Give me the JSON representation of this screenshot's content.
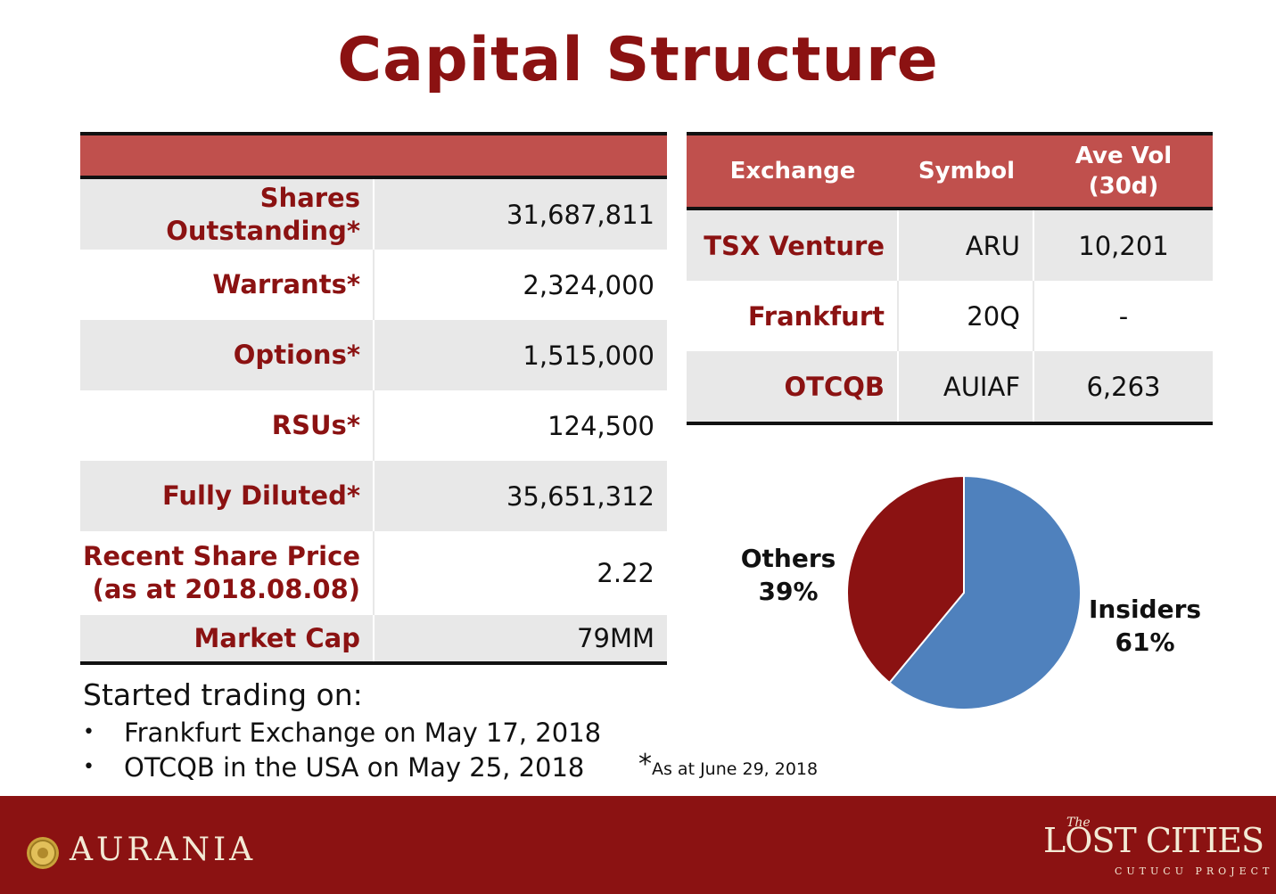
{
  "title": "Capital Structure",
  "capital_table": {
    "rows": [
      {
        "label": "Shares Outstanding*",
        "value": "31,687,811"
      },
      {
        "label": "Warrants*",
        "value": "2,324,000"
      },
      {
        "label": "Options*",
        "value": "1,515,000"
      },
      {
        "label": "RSUs*",
        "value": "124,500"
      },
      {
        "label": "Fully Diluted*",
        "value": "35,651,312"
      },
      {
        "label_line1": "Recent Share Price",
        "label_line2": "(as at 2018.08.08)",
        "value": "2.22"
      },
      {
        "label": "Market Cap",
        "value": "79MM"
      }
    ]
  },
  "exchange_table": {
    "headers": {
      "exchange": "Exchange",
      "symbol": "Symbol",
      "vol_line1": "Ave Vol",
      "vol_line2": "(30d)"
    },
    "rows": [
      {
        "exchange": "TSX Venture",
        "symbol": "ARU",
        "volume": "10,201"
      },
      {
        "exchange": "Frankfurt",
        "symbol": "20Q",
        "volume": "-"
      },
      {
        "exchange": "OTCQB",
        "symbol": "AUIAF",
        "volume": "6,263"
      }
    ]
  },
  "chart_data": {
    "type": "pie",
    "title": "",
    "series": [
      {
        "name": "Insiders",
        "value": 61,
        "label": "61%",
        "color": "#4F81BD"
      },
      {
        "name": "Others",
        "value": 39,
        "label": "39%",
        "color": "#8B1212"
      }
    ]
  },
  "trading": {
    "heading": "Started trading on:",
    "bullet_symbol": "•",
    "items": [
      "Frankfurt Exchange on May 17, 2018",
      "OTCQB in the USA on May 25, 2018"
    ]
  },
  "footnote": {
    "star": "*",
    "text": "As at June 29, 2018"
  },
  "footer": {
    "left_brand": "AURANIA",
    "right_brand_the": "The",
    "right_brand_name": "LOST CITIES",
    "right_brand_sub": "CUTUCU PROJECT"
  },
  "colors": {
    "accent": "#8B1212",
    "header_fill": "#C0504D",
    "row_shade": "#E8E8E8",
    "insiders": "#4F81BD"
  }
}
